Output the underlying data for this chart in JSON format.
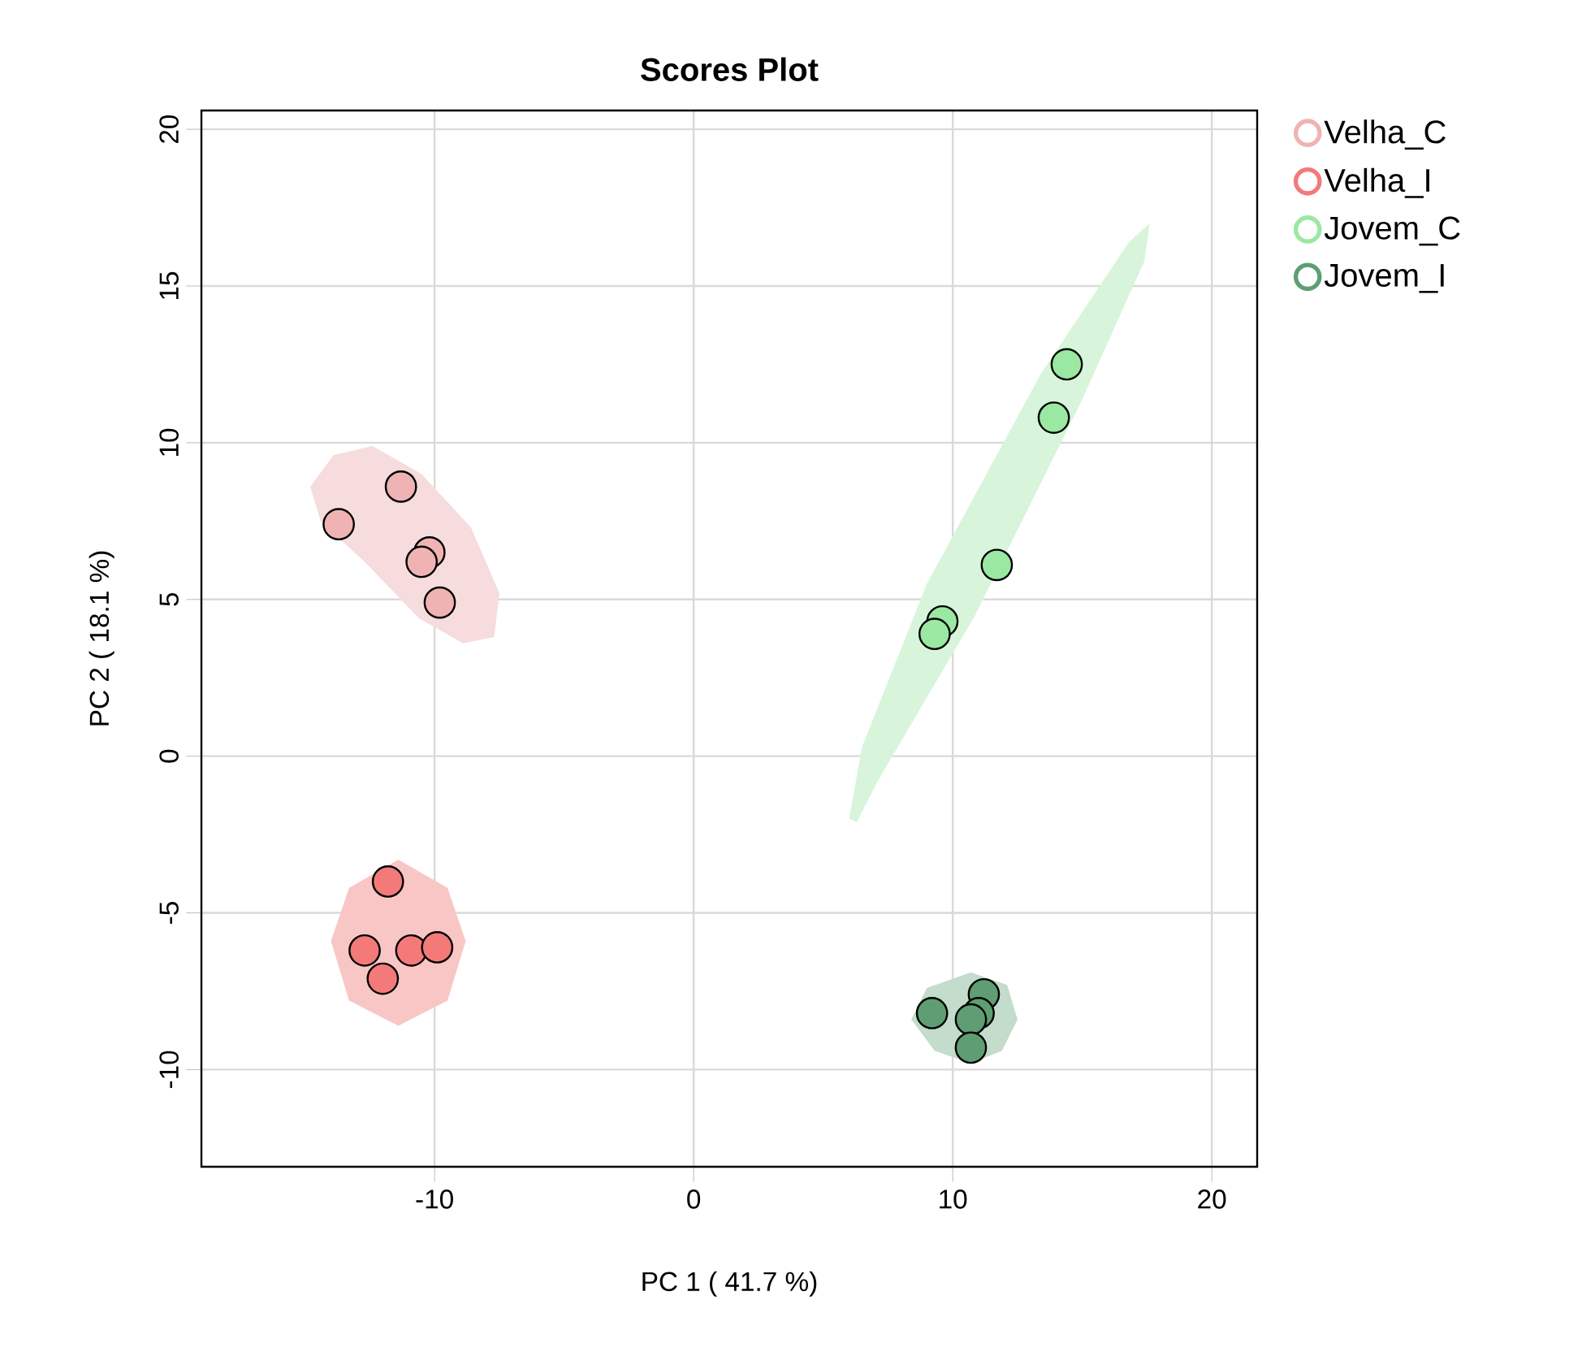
{
  "chart_data": {
    "type": "scatter",
    "title": "Scores Plot",
    "xlabel": "PC 1 ( 41.7 %)",
    "ylabel": "PC 2 ( 18.1 %)",
    "xlim": [
      -19,
      21.75
    ],
    "ylim": [
      -13.1,
      20.6
    ],
    "xticks": [
      -10,
      0,
      10,
      20
    ],
    "yticks": [
      -10,
      -5,
      0,
      5,
      10,
      15,
      20
    ],
    "grid": true,
    "legend": "right",
    "marker": "circle",
    "series": [
      {
        "type": "area",
        "marker": "none",
        "color": "#f6dcdc",
        "x": [
          -14.8,
          -13.9,
          -12.4,
          -10.5,
          -8.6,
          -7.5,
          -7.7,
          -8.9,
          -10.6,
          -12.7,
          -14.4
        ],
        "values": [
          8.6,
          9.6,
          9.9,
          9.0,
          7.3,
          5.2,
          3.8,
          3.6,
          4.4,
          6.2,
          7.5
        ]
      },
      {
        "type": "area",
        "marker": "none",
        "color": "#f9c6c6",
        "x": [
          -14.0,
          -13.3,
          -11.4,
          -9.5,
          -8.8,
          -9.5,
          -11.4,
          -13.3
        ],
        "values": [
          -5.9,
          -4.2,
          -3.3,
          -4.2,
          -5.9,
          -7.8,
          -8.6,
          -7.8
        ]
      },
      {
        "type": "area",
        "marker": "none",
        "color": "#d8f5db",
        "x": [
          6.0,
          6.5,
          9.0,
          13.4,
          16.8,
          17.6,
          17.4,
          14.9,
          10.8,
          7.1,
          6.3
        ],
        "values": [
          -2.0,
          0.3,
          5.5,
          12.2,
          16.4,
          17.0,
          15.8,
          11.2,
          4.4,
          -0.8,
          -2.1
        ]
      },
      {
        "type": "area",
        "marker": "none",
        "color": "#c4dccb",
        "x": [
          8.4,
          9.0,
          10.7,
          12.1,
          12.5,
          11.9,
          10.7,
          9.3
        ],
        "values": [
          -8.4,
          -7.4,
          -6.9,
          -7.3,
          -8.4,
          -9.4,
          -9.8,
          -9.4
        ]
      },
      {
        "name": "Velha_C",
        "color": "#f0b3b3",
        "x": [
          -13.7,
          -11.3,
          -10.2,
          -10.5,
          -9.8
        ],
        "values": [
          7.4,
          8.6,
          6.5,
          6.2,
          4.9
        ]
      },
      {
        "name": "Velha_I",
        "color": "#f47a7a",
        "x": [
          -11.8,
          -12.7,
          -12.0,
          -10.9,
          -9.9
        ],
        "values": [
          -4.0,
          -6.2,
          -7.1,
          -6.2,
          -6.1
        ]
      },
      {
        "name": "Jovem_C",
        "color": "#9be8a3",
        "x": [
          14.4,
          13.9,
          11.7,
          9.6,
          9.3
        ],
        "values": [
          12.5,
          10.8,
          6.1,
          4.3,
          3.9
        ]
      },
      {
        "name": "Jovem_I",
        "color": "#5f9e72",
        "x": [
          9.2,
          11.2,
          11.0,
          10.7,
          10.7
        ],
        "values": [
          -8.2,
          -7.6,
          -8.2,
          -8.4,
          -9.3
        ]
      }
    ]
  }
}
